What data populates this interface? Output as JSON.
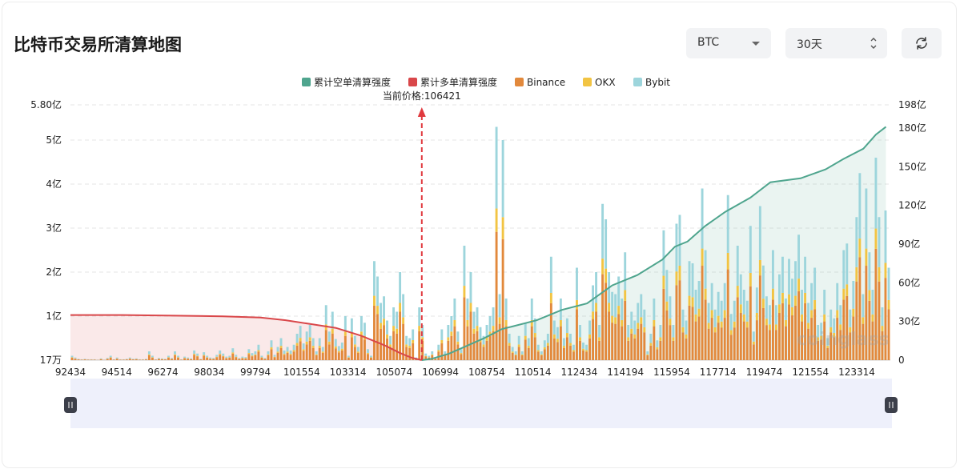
{
  "title": "比特币交易所清算地图",
  "controls": {
    "symbol": "BTC",
    "range": "30天"
  },
  "legend": [
    {
      "label": "累计空单清算强度",
      "color": "#4fa58e"
    },
    {
      "label": "累计多单清算强度",
      "color": "#d9474a"
    },
    {
      "label": "Binance",
      "color": "#e2893c"
    },
    {
      "label": "OKX",
      "color": "#f2c443"
    },
    {
      "label": "Bybit",
      "color": "#9dd5dc"
    }
  ],
  "watermark": "coinglass",
  "chart_data": {
    "type": "bar",
    "current_price_label": "当前价格:106421",
    "current_price": 106421,
    "x_ticks": [
      "92434",
      "94514",
      "96274",
      "98034",
      "99794",
      "101554",
      "103314",
      "105074",
      "106994",
      "108754",
      "110514",
      "112434",
      "114194",
      "115954",
      "117714",
      "119474",
      "121554",
      "123314"
    ],
    "x_range": [
      92434,
      125074
    ],
    "left_axis": {
      "ticks": [
        "17万",
        "1亿",
        "2亿",
        "3亿",
        "4亿",
        "5亿",
        "5.80亿"
      ],
      "values": [
        0.0017,
        1,
        2,
        3,
        4,
        5,
        5.8
      ],
      "unit": "亿",
      "range": [
        0,
        5.8
      ]
    },
    "right_axis": {
      "ticks": [
        "0",
        "30亿",
        "60亿",
        "90亿",
        "120亿",
        "150亿",
        "180亿",
        "198亿"
      ],
      "values": [
        0,
        30,
        60,
        90,
        120,
        150,
        180,
        198
      ],
      "unit": "亿",
      "range": [
        0,
        198
      ]
    },
    "bars_亿": [
      0.1,
      0.06,
      0.03,
      0.02,
      0.03,
      0.02,
      0.02,
      0.02,
      0.01,
      0.04,
      0.01,
      0.05,
      0.1,
      0.02,
      0.06,
      0.02,
      0.02,
      0.03,
      0.06,
      0.03,
      0.04,
      0.02,
      0.02,
      0.03,
      0.2,
      0.1,
      0.02,
      0.05,
      0.04,
      0.03,
      0.1,
      0.05,
      0.2,
      0.1,
      0.02,
      0.08,
      0.06,
      0.04,
      0.22,
      0.15,
      0.03,
      0.18,
      0.1,
      0.06,
      0.05,
      0.12,
      0.22,
      0.15,
      0.08,
      0.1,
      0.27,
      0.12,
      0.05,
      0.08,
      0.07,
      0.25,
      0.16,
      0.2,
      0.35,
      0.1,
      0.05,
      0.2,
      0.45,
      0.12,
      0.3,
      0.5,
      0.22,
      0.3,
      0.22,
      0.35,
      0.6,
      0.78,
      0.38,
      0.65,
      0.8,
      0.5,
      0.2,
      0.5,
      0.3,
      1.25,
      0.65,
      1.1,
      0.48,
      0.32,
      0.4,
      1.0,
      0.1,
      0.95,
      0.55,
      0.3,
      1.0,
      0.85,
      0.25,
      0.1,
      2.25,
      1.9,
      1.3,
      1.45,
      0.9,
      0.55,
      1.2,
      1.1,
      2.0,
      1.5,
      0.55,
      0.5,
      0.7,
      0.06,
      1.2,
      0.8,
      0.15,
      0.1,
      0.2,
      0.06,
      0.35,
      0.7,
      0.2,
      0.8,
      1.0,
      1.4,
      0.65,
      0.25,
      2.6,
      1.4,
      2.0,
      1.1,
      1.2,
      0.75,
      0.55,
      0.8,
      1.0,
      1.2,
      5.3,
      1.5,
      5.0,
      1.4,
      0.6,
      0.3,
      0.2,
      0.55,
      0.2,
      0.85,
      0.5,
      1.4,
      0.95,
      0.35,
      0.2,
      0.45,
      0.6,
      2.35,
      0.9,
      0.75,
      1.4,
      0.5,
      0.95,
      0.6,
      0.35,
      2.1,
      0.8,
      0.4,
      0.35,
      0.9,
      1.7,
      2.0,
      0.8,
      3.55,
      3.2,
      2.0,
      1.55,
      1.5,
      1.9,
      1.4,
      2.45,
      0.8,
      1.1,
      0.9,
      1.3,
      1.5,
      1.15,
      0.2,
      0.6,
      1.4,
      0.45,
      0.8,
      2.95,
      2.05,
      1.45,
      0.8,
      3.1,
      3.3,
      1.15,
      0.9,
      2.25,
      2.2,
      1.6,
      1.8,
      3.9,
      2.5,
      1.3,
      1.75,
      1.15,
      1.55,
      1.35,
      1.75,
      3.75,
      1.05,
      1.35,
      2.6,
      1.95,
      1.6,
      1.35,
      3.05,
      0.65,
      1.65,
      3.5,
      2.15,
      1.45,
      1.25,
      2.5,
      1.25,
      1.95,
      2.35,
      1.4,
      2.3,
      1.85,
      2.25,
      2.85,
      1.6,
      2.35,
      1.3,
      1.75,
      2.1,
      0.8,
      0.85,
      1.6,
      0.5,
      1.15,
      0.95,
      1.75,
      1.25,
      2.5,
      2.65,
      1.15,
      1.8,
      3.25,
      4.25,
      1.5,
      3.9,
      2.45,
      1.6,
      4.6,
      3.25,
      1.2,
      3.4,
      2.1
    ],
    "short_cumulative_亿": {
      "x": [
        106421,
        106800,
        107500,
        108200,
        108900,
        109300,
        109600,
        110000,
        111000,
        112000,
        113000,
        114000,
        115000,
        116000,
        116500,
        117000,
        117700,
        118500,
        119500,
        120300,
        121500,
        122500,
        123200,
        124000,
        124500,
        124900
      ],
      "y": [
        0,
        1,
        5,
        11,
        17,
        21,
        24,
        26,
        31,
        39,
        44,
        58,
        66,
        78,
        88,
        92,
        104,
        115,
        126,
        138,
        141,
        148,
        156,
        164,
        175,
        181
      ]
    },
    "long_cumulative_亿": {
      "x": [
        92434,
        94500,
        96500,
        98500,
        100000,
        101000,
        102000,
        103000,
        103500,
        104000,
        104500,
        105000,
        105500,
        106000,
        106421
      ],
      "y": [
        35,
        35,
        34.5,
        34,
        33,
        31,
        28,
        25,
        22,
        19,
        15,
        11,
        6,
        2,
        0
      ]
    }
  }
}
